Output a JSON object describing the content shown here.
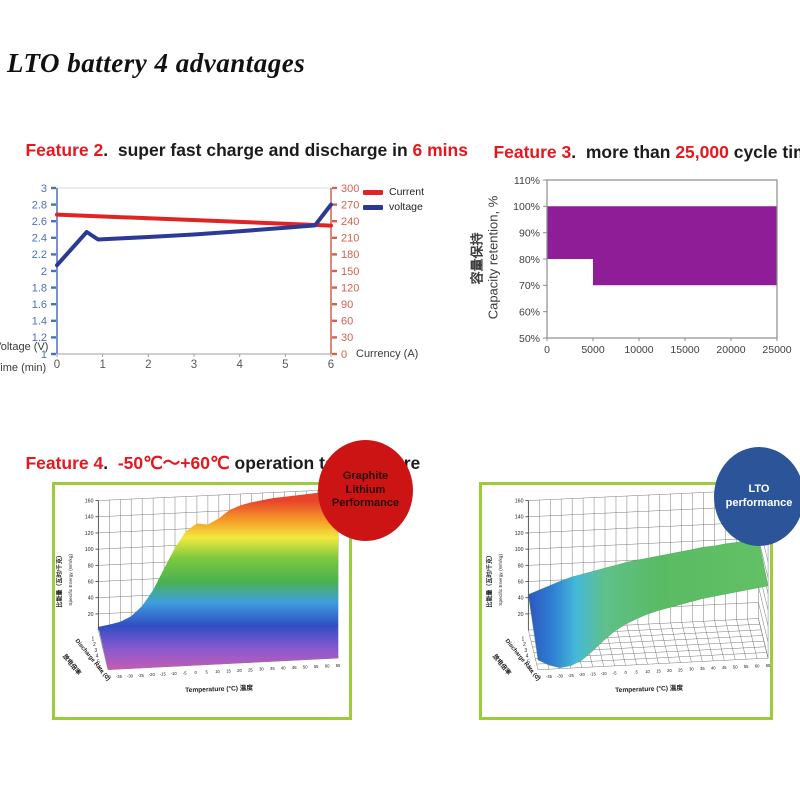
{
  "page": {
    "title": "LTO battery 4 advantages"
  },
  "features": {
    "f2": {
      "prefix": "Feature 2",
      "sep": ".  ",
      "body": "super fast charge and discharge in ",
      "highlight": "6 mins"
    },
    "f3": {
      "prefix": "Feature 3",
      "sep": ".  ",
      "body": "more than ",
      "highlight": "25,000",
      "tail": " cycle time"
    },
    "f4": {
      "prefix": "Feature 4",
      "sep": ".  ",
      "highlight": "-50℃～+60℃",
      "tail": " operation temperature"
    }
  },
  "badges": {
    "graphite": {
      "line1": "Graphite",
      "line2": "Lithium",
      "line3": "Performance"
    },
    "lto": {
      "line1": "LTO",
      "line2": "performance"
    }
  },
  "colors": {
    "accent_red": "#e8161d",
    "text_black": "#1c1c1c",
    "line_red": "#e02424",
    "line_blue": "#2b3a94",
    "axis_blue": "#4a6fbe",
    "axis_red": "#d4604f",
    "axis_gray": "#595959",
    "purple": "#8e1d97",
    "green_border": "#9ccb3c",
    "badge_red": "#cd1414",
    "badge_blue": "#2c5499"
  },
  "chart_data": [
    {
      "id": "charge-discharge",
      "type": "line",
      "x": {
        "label": "Time (min)",
        "ticks": [
          0,
          1,
          2,
          3,
          4,
          5,
          6
        ],
        "range": [
          0,
          6
        ]
      },
      "y_left": {
        "label": "Voltage (V)",
        "ticks": [
          3,
          2.8,
          2.6,
          2.4,
          2.2,
          2,
          1.8,
          1.6,
          1.4,
          1.2,
          1
        ],
        "range": [
          1,
          3
        ],
        "color": "#4a6fbe"
      },
      "y_right": {
        "label": "Currency (A)",
        "ticks": [
          300,
          270,
          240,
          210,
          180,
          150,
          120,
          90,
          60,
          30,
          0
        ],
        "range": [
          0,
          300
        ],
        "color": "#d4604f"
      },
      "legend_position": "top-right",
      "series": [
        {
          "name": "Current",
          "axis": "right",
          "color": "#e02424",
          "points": [
            [
              0,
              252
            ],
            [
              6,
              232
            ]
          ]
        },
        {
          "name": "voltage",
          "axis": "left",
          "color": "#2b3a94",
          "points": [
            [
              0,
              2.07
            ],
            [
              0.65,
              2.47
            ],
            [
              0.9,
              2.38
            ],
            [
              2,
              2.41
            ],
            [
              3,
              2.44
            ],
            [
              4,
              2.48
            ],
            [
              5,
              2.52
            ],
            [
              5.65,
              2.55
            ],
            [
              6,
              2.8
            ]
          ]
        }
      ]
    },
    {
      "id": "cycle-life",
      "type": "area",
      "x": {
        "ticks": [
          0,
          5000,
          10000,
          15000,
          20000,
          25000
        ],
        "range": [
          0,
          25000
        ]
      },
      "y": {
        "tick_labels": [
          "110%",
          "100%",
          "90%",
          "80%",
          "70%",
          "60%",
          "50%"
        ],
        "tick_values": [
          110,
          100,
          90,
          80,
          70,
          60,
          50
        ],
        "range": [
          50,
          110
        ],
        "label_cn": "容量保持",
        "label_en": "Capacity retention, %"
      },
      "band": {
        "color": "#8e1d97",
        "top": 100,
        "bottom_steps": [
          [
            0,
            80
          ],
          [
            5000,
            80
          ],
          [
            5000,
            70
          ],
          [
            25000,
            70
          ]
        ],
        "polygon": [
          [
            0,
            100
          ],
          [
            25000,
            100
          ],
          [
            25000,
            70
          ],
          [
            5000,
            70
          ],
          [
            5000,
            80
          ],
          [
            0,
            80
          ]
        ]
      }
    },
    {
      "id": "graphite-surface",
      "type": "surface",
      "x_label": "Temperature (°C) 温度",
      "x_ticks": [
        -40,
        -35,
        -30,
        -25,
        -20,
        -15,
        -10,
        -5,
        0,
        5,
        10,
        15,
        20,
        25,
        30,
        35,
        40,
        45,
        50,
        55,
        60,
        65
      ],
      "z_ticks": [
        160,
        140,
        120,
        100,
        80,
        60,
        40,
        20
      ],
      "z_max": 160,
      "rate_ticks": [
        1,
        2,
        3,
        4,
        5,
        6,
        7
      ],
      "rate_label": "Discharge Rate (C)",
      "rate_label_cn": "放电倍率",
      "z_label_cn": "比能量（瓦时/千克）",
      "z_label_en": "Specific Energy (Wh/kg)",
      "fill_mode": "terrain",
      "back_heights": [
        4,
        6,
        9,
        15,
        27,
        46,
        72,
        97,
        117,
        126,
        124,
        131,
        141,
        146,
        149,
        151,
        153,
        154,
        155,
        156,
        157,
        157
      ],
      "gradient": {
        "dir": "vertical",
        "stops": [
          [
            "0%",
            "#c45cb4"
          ],
          [
            "12%",
            "#8a5ace"
          ],
          [
            "26%",
            "#2f4ec2"
          ],
          [
            "40%",
            "#3f9fdd"
          ],
          [
            "52%",
            "#49b24f"
          ],
          [
            "66%",
            "#7dc93f"
          ],
          [
            "78%",
            "#f2e93e"
          ],
          [
            "88%",
            "#f59d27"
          ],
          [
            "100%",
            "#e8432b"
          ]
        ]
      }
    },
    {
      "id": "lto-surface",
      "type": "surface",
      "x_label": "Temperature (°C) 温度",
      "x_ticks": [
        -40,
        -35,
        -30,
        -25,
        -20,
        -15,
        -10,
        -5,
        0,
        5,
        10,
        15,
        20,
        25,
        30,
        35,
        40,
        45,
        50,
        55,
        60,
        65
      ],
      "z_ticks": [
        160,
        140,
        120,
        100,
        80,
        60,
        40,
        20
      ],
      "z_max": 160,
      "rate_ticks": [
        1,
        2,
        3,
        4,
        5,
        6,
        7
      ],
      "rate_label": "Discharge Rate (C)",
      "rate_label_cn": "放电倍率",
      "z_label_cn": "比能量（瓦时/千克）",
      "z_label_en": "Specific Energy (Wh/kg)",
      "fill_mode": "ribbon",
      "back_heights": [
        44,
        49,
        54,
        59,
        63,
        66,
        69,
        72,
        75,
        78,
        80,
        82,
        84,
        86,
        88,
        90,
        92,
        93,
        95,
        96,
        98,
        99
      ],
      "front_heights": [
        12,
        5,
        1,
        3,
        9,
        20,
        32,
        43,
        51,
        57,
        62,
        66,
        69,
        72,
        75,
        78,
        80,
        82,
        84,
        86,
        88,
        90
      ],
      "gradient": {
        "dir": "horizontal",
        "stops": [
          [
            "0%",
            "#2f55c0"
          ],
          [
            "10%",
            "#2e7fd4"
          ],
          [
            "20%",
            "#45b9d8"
          ],
          [
            "32%",
            "#5fc08a"
          ],
          [
            "55%",
            "#59bb63"
          ],
          [
            "100%",
            "#63c065"
          ]
        ]
      }
    }
  ]
}
